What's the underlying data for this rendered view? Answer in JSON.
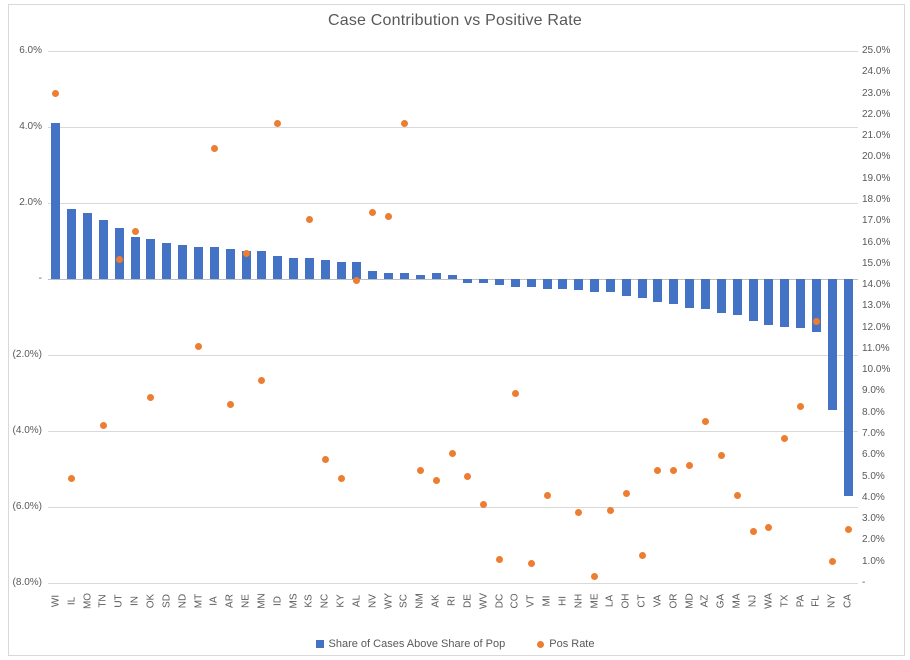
{
  "title": "Case Contribution vs Positive Rate",
  "legend": {
    "bars_label": "Share of Cases Above Share of Pop",
    "dots_label": "Pos Rate"
  },
  "colors": {
    "bar": "#4472C4",
    "dot": "#ED7D31",
    "gridline": "#D9D9D9",
    "axis_line": "#BFBFBF",
    "text": "#595959"
  },
  "chart_data": {
    "type": "bar",
    "subtype": "combo-bar-scatter-dual-axis",
    "title": "Case Contribution vs Positive Rate",
    "grid": true,
    "legend_position": "bottom",
    "categories": [
      "WI",
      "IL",
      "MO",
      "TN",
      "UT",
      "IN",
      "OK",
      "SD",
      "ND",
      "MT",
      "IA",
      "AR",
      "NE",
      "MN",
      "ID",
      "MS",
      "KS",
      "NC",
      "KY",
      "AL",
      "NV",
      "WY",
      "SC",
      "NM",
      "AK",
      "RI",
      "DE",
      "WV",
      "DC",
      "CO",
      "VT",
      "MI",
      "HI",
      "NH",
      "ME",
      "LA",
      "OH",
      "CT",
      "VA",
      "OR",
      "MD",
      "AZ",
      "GA",
      "MA",
      "NJ",
      "WA",
      "TX",
      "PA",
      "FL",
      "NY",
      "CA"
    ],
    "series": [
      {
        "name": "Share of Cases Above Share of Pop",
        "type": "bar",
        "axis": "left",
        "values": [
          4.1,
          1.85,
          1.75,
          1.55,
          1.35,
          1.1,
          1.05,
          0.95,
          0.9,
          0.85,
          0.85,
          0.8,
          0.75,
          0.75,
          0.6,
          0.55,
          0.55,
          0.5,
          0.45,
          0.45,
          0.2,
          0.15,
          0.15,
          0.1,
          0.15,
          0.1,
          -0.1,
          -0.1,
          -0.15,
          -0.2,
          -0.2,
          -0.25,
          -0.25,
          -0.3,
          -0.35,
          -0.35,
          -0.45,
          -0.5,
          -0.6,
          -0.65,
          -0.75,
          -0.8,
          -0.9,
          -0.95,
          -1.1,
          -1.2,
          -1.25,
          -1.3,
          -1.4,
          -3.45,
          -5.7
        ]
      },
      {
        "name": "Pos Rate",
        "type": "scatter",
        "axis": "right",
        "values": [
          23.0,
          4.9,
          null,
          7.4,
          15.2,
          16.5,
          8.7,
          null,
          null,
          11.1,
          20.4,
          8.4,
          15.5,
          9.5,
          21.6,
          null,
          17.1,
          5.8,
          4.9,
          14.2,
          17.4,
          17.2,
          21.6,
          5.3,
          4.8,
          6.1,
          5.0,
          3.7,
          1.1,
          8.9,
          0.9,
          4.1,
          null,
          3.3,
          0.3,
          3.4,
          4.2,
          1.3,
          5.3,
          5.3,
          5.5,
          7.6,
          6.0,
          4.1,
          2.4,
          2.6,
          6.8,
          8.3,
          12.3,
          1.0,
          2.5
        ]
      }
    ],
    "left_axis": {
      "min": -8,
      "max": 6,
      "step": 2,
      "tick_labels": [
        "6.0%",
        "4.0%",
        "2.0%",
        "-",
        "(2.0%)",
        "(4.0%)",
        "(6.0%)",
        "(8.0%)"
      ]
    },
    "right_axis": {
      "min": 0,
      "max": 25,
      "step": 1,
      "tick_labels": [
        "25.0%",
        "24.0%",
        "23.0%",
        "22.0%",
        "21.0%",
        "20.0%",
        "19.0%",
        "18.0%",
        "17.0%",
        "16.0%",
        "15.0%",
        "14.0%",
        "13.0%",
        "12.0%",
        "11.0%",
        "10.0%",
        "9.0%",
        "8.0%",
        "7.0%",
        "6.0%",
        "5.0%",
        "4.0%",
        "3.0%",
        "2.0%",
        "1.0%",
        "-"
      ]
    }
  }
}
